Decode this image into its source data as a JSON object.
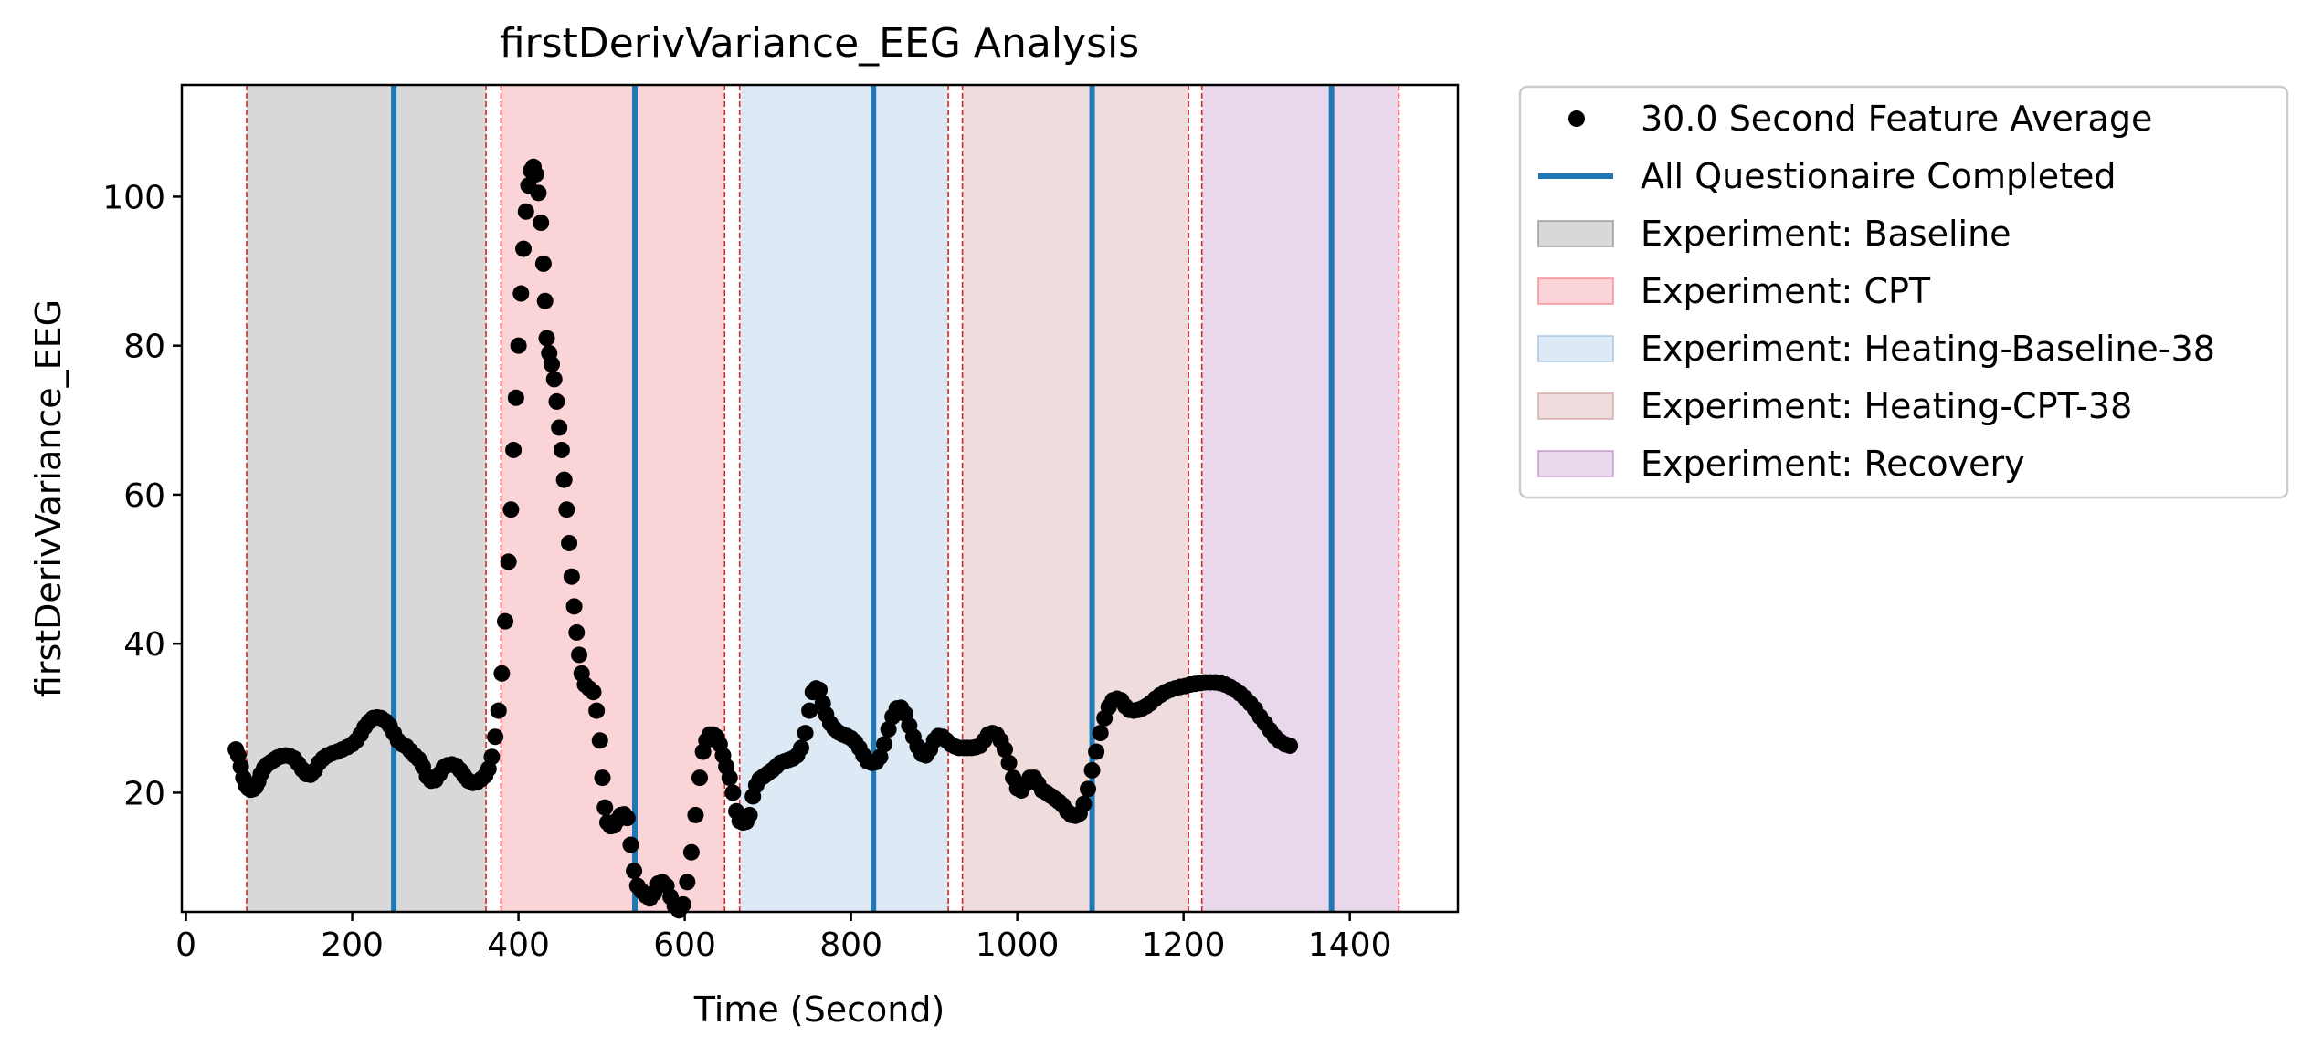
{
  "chart_data": {
    "type": "scatter",
    "title": "firstDerivVariance_EEG Analysis",
    "xlabel": "Time (Second)",
    "ylabel": "firstDerivVariance_EEG",
    "xlim": [
      -5,
      1530
    ],
    "ylim": [
      4,
      115
    ],
    "xticks": [
      0,
      200,
      400,
      600,
      800,
      1000,
      1200,
      1400
    ],
    "yticks": [
      20,
      40,
      60,
      80,
      100
    ],
    "grid": false,
    "legend_position": "outside-right",
    "colors": {
      "points": "#000000",
      "questionnaire": "#1f77b4",
      "boundary": "#d62728",
      "Baseline": "#7f7f7f",
      "CPT": "#ee6f78",
      "Heating-Baseline-38": "#8fb6dc",
      "Heating-CPT-38": "#c98f8f",
      "Recovery": "#b57fc0"
    },
    "phases": [
      {
        "name": "Baseline",
        "start": 73,
        "end": 361
      },
      {
        "name": "CPT",
        "start": 379,
        "end": 648
      },
      {
        "name": "Heating-Baseline-38",
        "start": 666,
        "end": 917
      },
      {
        "name": "Heating-CPT-38",
        "start": 934,
        "end": 1206
      },
      {
        "name": "Recovery",
        "start": 1222,
        "end": 1459
      }
    ],
    "questionnaire_times": [
      250,
      540,
      827,
      1090,
      1378
    ],
    "series": [
      {
        "name": "30.0 Second Feature Average",
        "points": [
          [
            60,
            25.8
          ],
          [
            63,
            25.0
          ],
          [
            66,
            23.5
          ],
          [
            69,
            22.0
          ],
          [
            72,
            21.0
          ],
          [
            75,
            20.6
          ],
          [
            78,
            20.4
          ],
          [
            81,
            20.5
          ],
          [
            84,
            20.8
          ],
          [
            87,
            21.5
          ],
          [
            90,
            22.5
          ],
          [
            94,
            23.3
          ],
          [
            98,
            23.8
          ],
          [
            102,
            24.1
          ],
          [
            106,
            24.4
          ],
          [
            110,
            24.7
          ],
          [
            115,
            24.9
          ],
          [
            120,
            25.0
          ],
          [
            125,
            24.9
          ],
          [
            130,
            24.6
          ],
          [
            135,
            23.9
          ],
          [
            140,
            23.1
          ],
          [
            145,
            22.5
          ],
          [
            150,
            22.4
          ],
          [
            155,
            23.0
          ],
          [
            160,
            24.0
          ],
          [
            165,
            24.6
          ],
          [
            170,
            25.0
          ],
          [
            176,
            25.3
          ],
          [
            182,
            25.5
          ],
          [
            188,
            25.8
          ],
          [
            194,
            26.1
          ],
          [
            200,
            26.5
          ],
          [
            205,
            27.0
          ],
          [
            210,
            27.8
          ],
          [
            215,
            28.8
          ],
          [
            220,
            29.5
          ],
          [
            225,
            30.0
          ],
          [
            230,
            30.1
          ],
          [
            235,
            30.0
          ],
          [
            240,
            29.6
          ],
          [
            245,
            29.0
          ],
          [
            250,
            28.0
          ],
          [
            255,
            27.0
          ],
          [
            260,
            26.5
          ],
          [
            265,
            26.2
          ],
          [
            270,
            25.6
          ],
          [
            275,
            25.0
          ],
          [
            280,
            24.5
          ],
          [
            285,
            23.5
          ],
          [
            290,
            22.2
          ],
          [
            295,
            21.6
          ],
          [
            300,
            21.7
          ],
          [
            305,
            22.5
          ],
          [
            310,
            23.4
          ],
          [
            315,
            23.7
          ],
          [
            320,
            23.8
          ],
          [
            325,
            23.6
          ],
          [
            330,
            23.0
          ],
          [
            335,
            22.2
          ],
          [
            340,
            21.6
          ],
          [
            345,
            21.3
          ],
          [
            350,
            21.4
          ],
          [
            355,
            21.8
          ],
          [
            360,
            22.3
          ],
          [
            364,
            23.2
          ],
          [
            368,
            24.8
          ],
          [
            372,
            27.5
          ],
          [
            376,
            31.0
          ],
          [
            380,
            36.0
          ],
          [
            384,
            43.0
          ],
          [
            388,
            51.0
          ],
          [
            391,
            58.0
          ],
          [
            394,
            66.0
          ],
          [
            397,
            73.0
          ],
          [
            400,
            80.0
          ],
          [
            403,
            87.0
          ],
          [
            406,
            93.0
          ],
          [
            409,
            98.0
          ],
          [
            412,
            101.5
          ],
          [
            415,
            103.5
          ],
          [
            418,
            104.0
          ],
          [
            421,
            103.0
          ],
          [
            424,
            100.5
          ],
          [
            427,
            96.5
          ],
          [
            430,
            91.0
          ],
          [
            432,
            86.0
          ],
          [
            434,
            81.0
          ],
          [
            437,
            79.0
          ],
          [
            440,
            77.5
          ],
          [
            443,
            75.5
          ],
          [
            446,
            72.5
          ],
          [
            449,
            69.0
          ],
          [
            452,
            66.0
          ],
          [
            455,
            62.0
          ],
          [
            458,
            58.0
          ],
          [
            461,
            53.5
          ],
          [
            464,
            49.0
          ],
          [
            467,
            45.0
          ],
          [
            470,
            41.5
          ],
          [
            473,
            38.5
          ],
          [
            476,
            36.0
          ],
          [
            480,
            34.5
          ],
          [
            485,
            34.0
          ],
          [
            490,
            33.5
          ],
          [
            494,
            31.0
          ],
          [
            498,
            27.0
          ],
          [
            501,
            22.0
          ],
          [
            504,
            18.0
          ],
          [
            507,
            16.0
          ],
          [
            511,
            15.5
          ],
          [
            515,
            15.6
          ],
          [
            519,
            16.3
          ],
          [
            523,
            17.0
          ],
          [
            527,
            17.1
          ],
          [
            531,
            16.6
          ],
          [
            535,
            13.0
          ],
          [
            539,
            9.5
          ],
          [
            543,
            7.5
          ],
          [
            548,
            6.8
          ],
          [
            553,
            6.2
          ],
          [
            558,
            5.8
          ],
          [
            563,
            6.5
          ],
          [
            568,
            7.8
          ],
          [
            573,
            8.0
          ],
          [
            578,
            7.5
          ],
          [
            583,
            6.0
          ],
          [
            588,
            4.8
          ],
          [
            593,
            4.2
          ],
          [
            598,
            5.0
          ],
          [
            603,
            8.0
          ],
          [
            608,
            12.0
          ],
          [
            613,
            17.0
          ],
          [
            618,
            22.0
          ],
          [
            622,
            25.5
          ],
          [
            626,
            27.0
          ],
          [
            630,
            27.8
          ],
          [
            634,
            27.8
          ],
          [
            638,
            27.5
          ],
          [
            642,
            26.5
          ],
          [
            646,
            25.0
          ],
          [
            650,
            23.5
          ],
          [
            654,
            22.0
          ],
          [
            658,
            20.0
          ],
          [
            662,
            17.5
          ],
          [
            666,
            16.2
          ],
          [
            670,
            16.0
          ],
          [
            674,
            16.1
          ],
          [
            678,
            17.0
          ],
          [
            682,
            19.5
          ],
          [
            686,
            21.0
          ],
          [
            690,
            21.8
          ],
          [
            695,
            22.2
          ],
          [
            700,
            22.6
          ],
          [
            705,
            23.0
          ],
          [
            710,
            23.5
          ],
          [
            715,
            24.0
          ],
          [
            720,
            24.2
          ],
          [
            725,
            24.4
          ],
          [
            730,
            24.6
          ],
          [
            735,
            25.0
          ],
          [
            740,
            26.0
          ],
          [
            745,
            28.0
          ],
          [
            750,
            31.0
          ],
          [
            754,
            33.5
          ],
          [
            758,
            34.0
          ],
          [
            762,
            33.8
          ],
          [
            766,
            32.0
          ],
          [
            770,
            30.5
          ],
          [
            775,
            29.3
          ],
          [
            780,
            28.6
          ],
          [
            785,
            28.1
          ],
          [
            790,
            27.8
          ],
          [
            795,
            27.6
          ],
          [
            800,
            27.3
          ],
          [
            805,
            26.8
          ],
          [
            810,
            26.0
          ],
          [
            815,
            25.0
          ],
          [
            820,
            24.2
          ],
          [
            825,
            24.0
          ],
          [
            830,
            24.1
          ],
          [
            835,
            24.8
          ],
          [
            840,
            26.5
          ],
          [
            845,
            28.5
          ],
          [
            850,
            30.2
          ],
          [
            855,
            31.3
          ],
          [
            860,
            31.4
          ],
          [
            865,
            30.6
          ],
          [
            870,
            29.0
          ],
          [
            875,
            27.5
          ],
          [
            880,
            26.2
          ],
          [
            885,
            25.2
          ],
          [
            890,
            25.0
          ],
          [
            895,
            25.8
          ],
          [
            900,
            27.0
          ],
          [
            905,
            27.6
          ],
          [
            910,
            27.5
          ],
          [
            915,
            27.0
          ],
          [
            920,
            26.5
          ],
          [
            925,
            26.2
          ],
          [
            930,
            26.0
          ],
          [
            935,
            26.0
          ],
          [
            940,
            26.0
          ],
          [
            945,
            26.0
          ],
          [
            950,
            26.1
          ],
          [
            955,
            26.3
          ],
          [
            960,
            27.0
          ],
          [
            965,
            27.8
          ],
          [
            970,
            28.0
          ],
          [
            975,
            27.8
          ],
          [
            980,
            27.0
          ],
          [
            985,
            25.8
          ],
          [
            990,
            24.0
          ],
          [
            995,
            22.0
          ],
          [
            1000,
            20.6
          ],
          [
            1005,
            20.3
          ],
          [
            1010,
            21.2
          ],
          [
            1015,
            22.0
          ],
          [
            1020,
            22.0
          ],
          [
            1025,
            21.2
          ],
          [
            1030,
            20.3
          ],
          [
            1035,
            20.0
          ],
          [
            1040,
            19.6
          ],
          [
            1045,
            19.2
          ],
          [
            1050,
            18.8
          ],
          [
            1055,
            18.3
          ],
          [
            1060,
            17.5
          ],
          [
            1065,
            17.0
          ],
          [
            1070,
            16.9
          ],
          [
            1075,
            17.2
          ],
          [
            1080,
            18.5
          ],
          [
            1085,
            20.5
          ],
          [
            1090,
            23.0
          ],
          [
            1095,
            25.5
          ],
          [
            1100,
            28.0
          ],
          [
            1105,
            30.0
          ],
          [
            1110,
            31.5
          ],
          [
            1115,
            32.4
          ],
          [
            1120,
            32.6
          ],
          [
            1125,
            32.4
          ],
          [
            1130,
            31.6
          ],
          [
            1135,
            31.1
          ],
          [
            1140,
            31.0
          ],
          [
            1145,
            31.1
          ],
          [
            1150,
            31.3
          ],
          [
            1155,
            31.6
          ],
          [
            1160,
            32.0
          ],
          [
            1166,
            32.6
          ],
          [
            1172,
            33.1
          ],
          [
            1178,
            33.5
          ],
          [
            1184,
            33.8
          ],
          [
            1190,
            34.0
          ],
          [
            1196,
            34.2
          ],
          [
            1202,
            34.3
          ],
          [
            1208,
            34.5
          ],
          [
            1214,
            34.6
          ],
          [
            1220,
            34.7
          ],
          [
            1226,
            34.8
          ],
          [
            1232,
            34.8
          ],
          [
            1238,
            34.8
          ],
          [
            1244,
            34.7
          ],
          [
            1250,
            34.5
          ],
          [
            1256,
            34.2
          ],
          [
            1262,
            33.8
          ],
          [
            1268,
            33.3
          ],
          [
            1274,
            32.7
          ],
          [
            1280,
            32.0
          ],
          [
            1286,
            31.2
          ],
          [
            1292,
            30.2
          ],
          [
            1298,
            29.3
          ],
          [
            1304,
            28.4
          ],
          [
            1310,
            27.5
          ],
          [
            1316,
            26.9
          ],
          [
            1322,
            26.5
          ],
          [
            1328,
            26.3
          ]
        ]
      }
    ],
    "legend": [
      {
        "label": "30.0 Second Feature Average",
        "kind": "marker",
        "color": "#000000"
      },
      {
        "label": "All Questionaire Completed",
        "kind": "line",
        "color": "#1f77b4"
      },
      {
        "label": "Experiment: Baseline",
        "kind": "patch",
        "color": "#7f7f7f"
      },
      {
        "label": "Experiment: CPT",
        "kind": "patch",
        "color": "#ee6f78"
      },
      {
        "label": "Experiment: Heating-Baseline-38",
        "kind": "patch",
        "color": "#8fb6dc"
      },
      {
        "label": "Experiment: Heating-CPT-38",
        "kind": "patch",
        "color": "#c98f8f"
      },
      {
        "label": "Experiment: Recovery",
        "kind": "patch",
        "color": "#b57fc0"
      }
    ]
  }
}
